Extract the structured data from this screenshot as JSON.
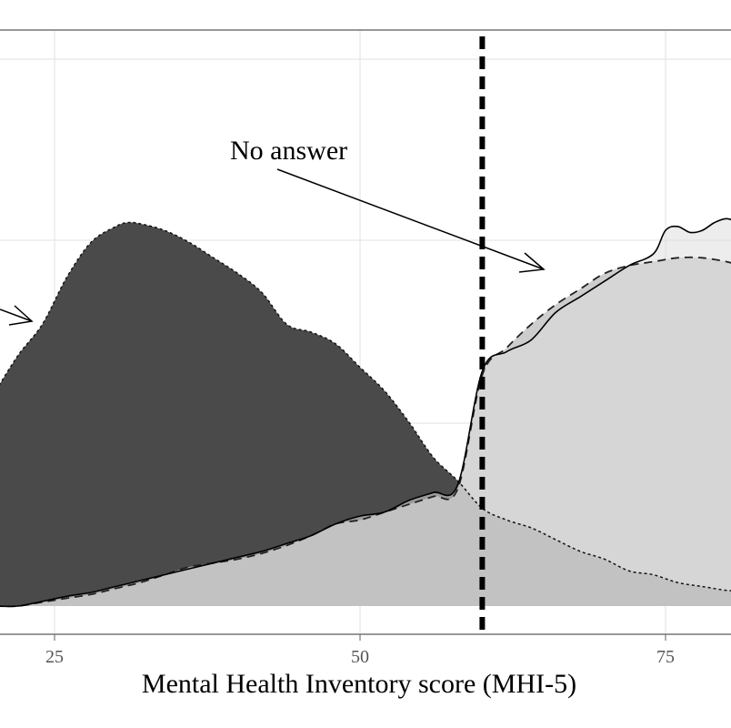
{
  "chart_data": {
    "type": "area",
    "xlabel": "Mental Health Inventory score (MHI-5)",
    "x_ticks": [
      25,
      50,
      75
    ],
    "xlim": [
      20,
      81
    ],
    "ylim": [
      0,
      1
    ],
    "grid": true,
    "threshold_x": 60,
    "annotations": [
      {
        "text": "No answer",
        "points_to_x": 65
      }
    ],
    "series": [
      {
        "color": "#4a4a4a",
        "x": [
          20,
          22,
          24,
          26,
          28,
          30,
          31,
          32,
          34,
          36,
          38,
          40,
          42,
          44,
          46,
          48,
          50,
          52,
          54,
          56,
          58,
          60,
          62,
          64,
          66,
          68,
          70,
          72,
          74,
          76,
          78,
          80,
          81
        ],
        "y": [
          0.54,
          0.64,
          0.72,
          0.84,
          0.93,
          0.97,
          0.98,
          0.977,
          0.96,
          0.93,
          0.89,
          0.85,
          0.8,
          0.72,
          0.7,
          0.67,
          0.61,
          0.55,
          0.47,
          0.38,
          0.32,
          0.25,
          0.22,
          0.2,
          0.17,
          0.14,
          0.12,
          0.09,
          0.08,
          0.06,
          0.05,
          0.04,
          0.04
        ]
      },
      {
        "color": "#bcbcbc",
        "x": [
          20,
          22,
          24,
          26,
          28,
          30,
          32,
          34,
          36,
          38,
          40,
          42,
          44,
          46,
          48,
          50,
          52,
          54,
          56,
          58,
          60,
          62,
          64,
          66,
          68,
          70,
          72,
          74,
          76,
          78,
          80,
          81
        ],
        "y": [
          0.0,
          0.0,
          0.01,
          0.02,
          0.03,
          0.045,
          0.06,
          0.08,
          0.1,
          0.11,
          0.12,
          0.135,
          0.155,
          0.18,
          0.21,
          0.22,
          0.24,
          0.26,
          0.28,
          0.3,
          0.59,
          0.66,
          0.72,
          0.77,
          0.81,
          0.85,
          0.87,
          0.88,
          0.89,
          0.89,
          0.88,
          0.87
        ]
      },
      {
        "color": "#dedede",
        "x": [
          20,
          22,
          24,
          26,
          28,
          30,
          32,
          34,
          36,
          38,
          40,
          42,
          44,
          46,
          48,
          50,
          52,
          54,
          56,
          58,
          60,
          62,
          64,
          66,
          68,
          70,
          72,
          74,
          75,
          76,
          77,
          78,
          79,
          80,
          81
        ],
        "y": [
          0.0,
          0.0,
          0.012,
          0.025,
          0.035,
          0.05,
          0.065,
          0.08,
          0.095,
          0.11,
          0.125,
          0.14,
          0.16,
          0.18,
          0.21,
          0.23,
          0.24,
          0.27,
          0.29,
          0.31,
          0.6,
          0.65,
          0.68,
          0.75,
          0.79,
          0.83,
          0.87,
          0.9,
          0.96,
          0.97,
          0.955,
          0.96,
          0.98,
          0.99,
          0.98
        ]
      }
    ]
  }
}
